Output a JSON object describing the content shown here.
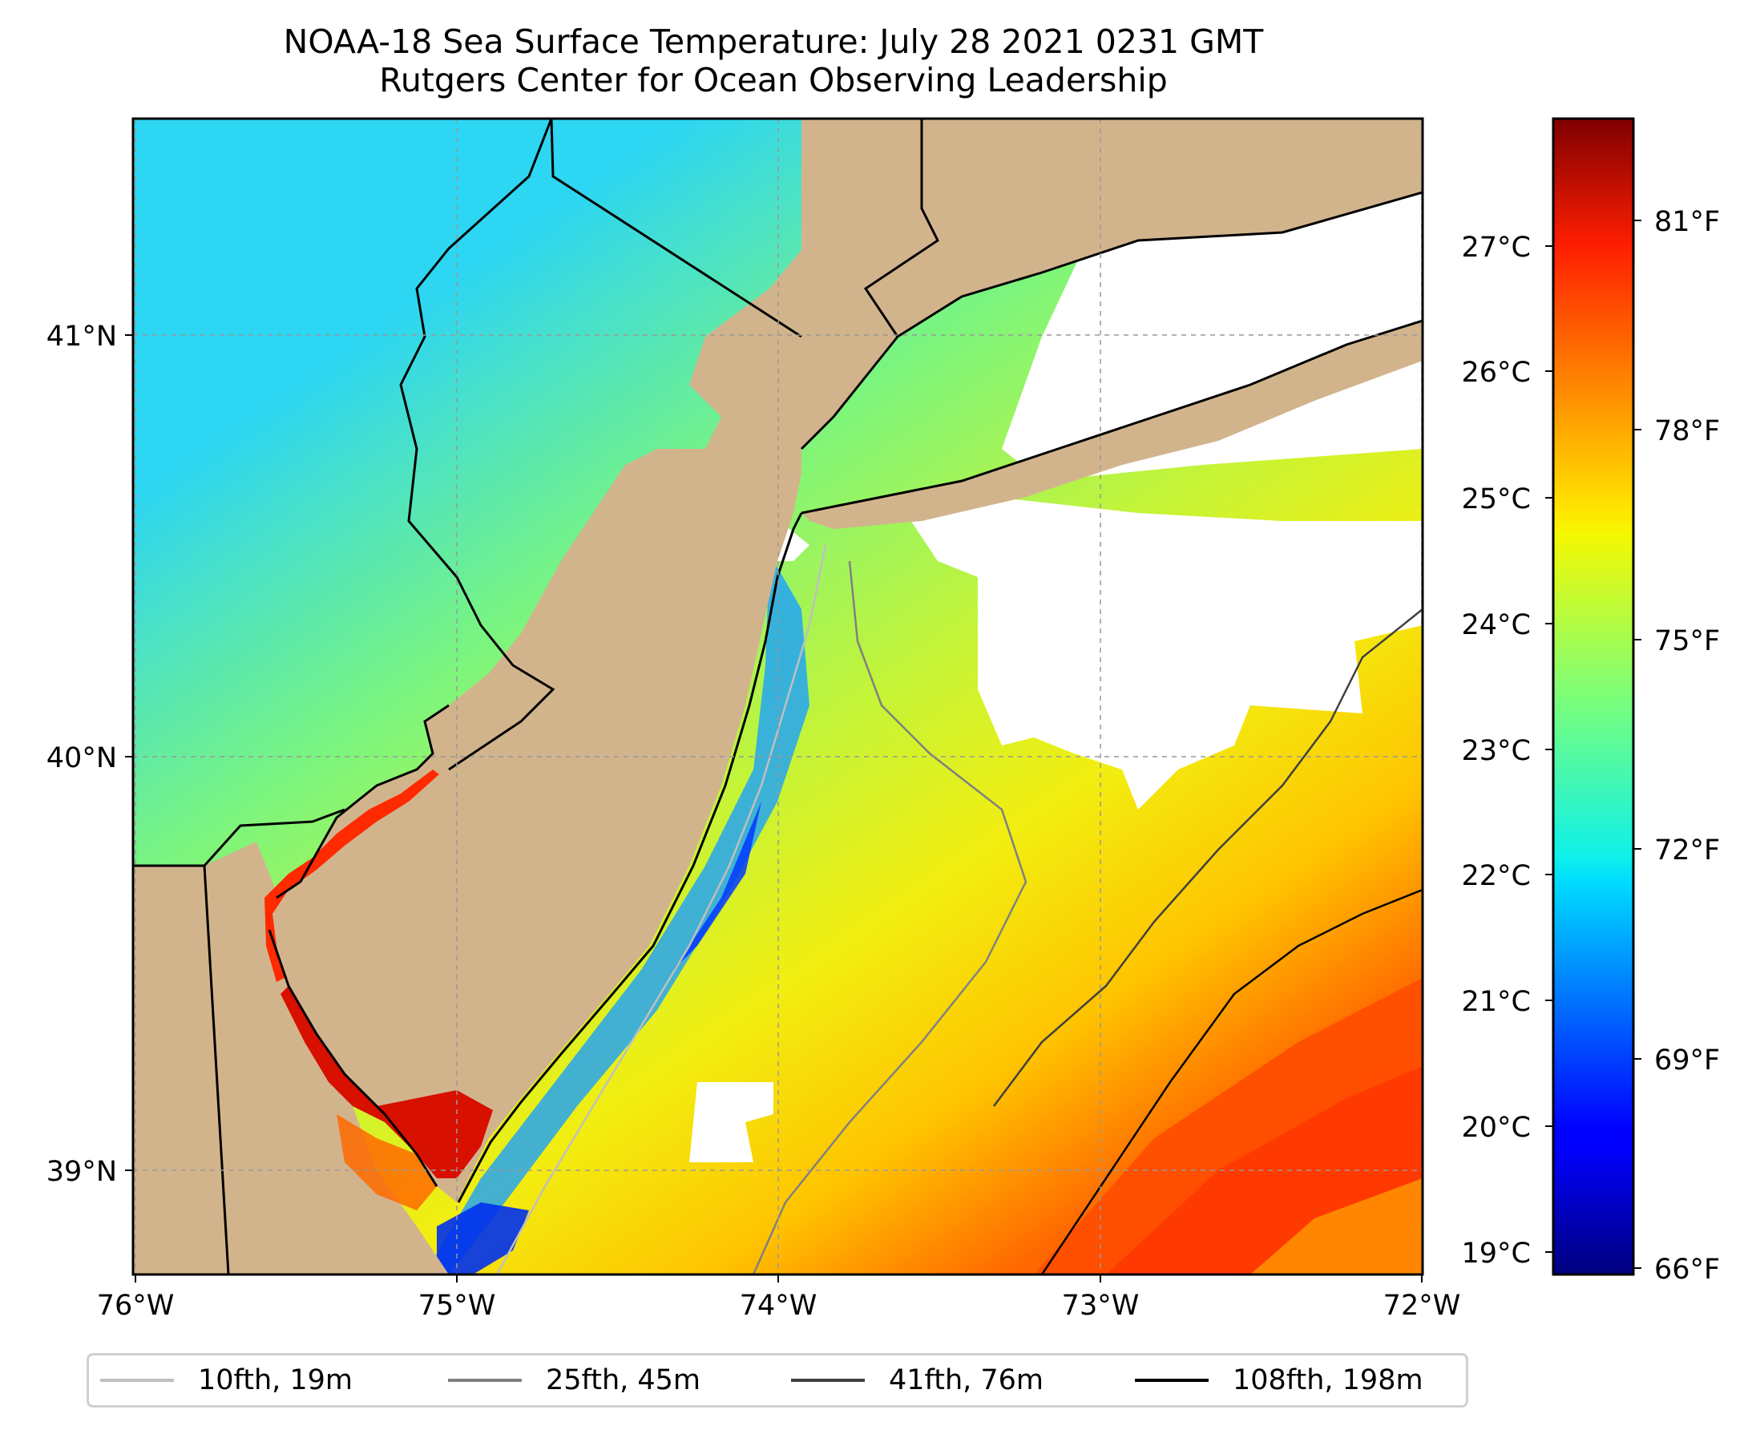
{
  "title": {
    "line1": "NOAA-18 Sea Surface Temperature: July 28 2021 0231 GMT",
    "line2": "Rutgers Center for Ocean Observing Leadership"
  },
  "map": {
    "lon_range": [
      -76,
      -72
    ],
    "lat_range": [
      38.72,
      41.5
    ],
    "lon_ticks": [
      "76°W",
      "75°W",
      "74°W",
      "73°W",
      "72°W"
    ],
    "lat_ticks": [
      "41°N",
      "40°N",
      "39°N"
    ],
    "gridlines": true,
    "land_color": "#d2b48c",
    "no_data_color": "#ffffff"
  },
  "colorbar": {
    "colormap": "jet",
    "range_f": [
      65.8,
      82.2
    ],
    "celsius_ticks": [
      "27°C",
      "26°C",
      "25°C",
      "24°C",
      "23°C",
      "22°C",
      "21°C",
      "20°C",
      "19°C"
    ],
    "fahrenheit_ticks": [
      "81°F",
      "78°F",
      "75°F",
      "72°F",
      "69°F",
      "66°F"
    ]
  },
  "legend": {
    "items": [
      {
        "label": "10fth, 19m",
        "color": "#bfbfbf"
      },
      {
        "label": "25fth, 45m",
        "color": "#808080"
      },
      {
        "label": "41fth, 76m",
        "color": "#404040"
      },
      {
        "label": "108fth, 198m",
        "color": "#000000"
      }
    ]
  }
}
